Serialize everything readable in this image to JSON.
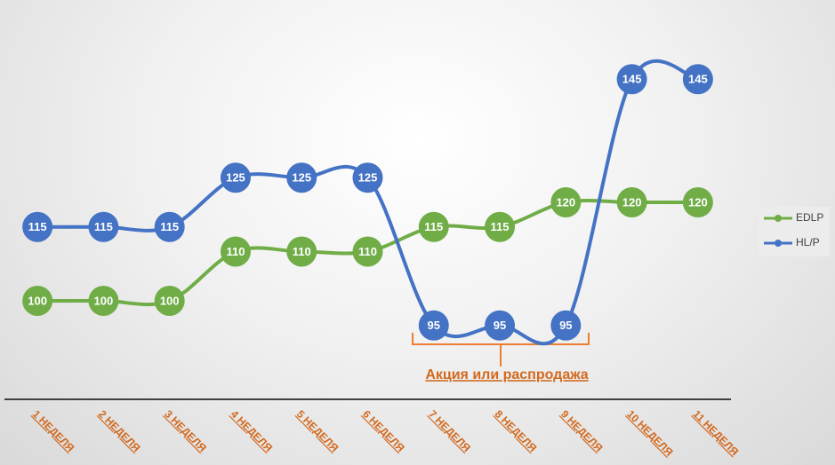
{
  "chart_data": {
    "type": "line",
    "smooth": true,
    "categories": [
      "1 НЕДЕЛЯ",
      "2 НЕДЕЛЯ",
      "3 НЕДЕЛЯ",
      "4 НЕДЕЛЯ",
      "5 НЕДЕЛЯ",
      "6 НЕДЕЛЯ",
      "7 НЕДЕЛЯ",
      "8 НЕДЕЛЯ",
      "9 НЕДЕЛЯ",
      "10 НЕДЕЛЯ",
      "11 НЕДЕЛЯ"
    ],
    "series": [
      {
        "name": "EDLP",
        "color": "#70ad47",
        "values": [
          100,
          100,
          100,
          110,
          110,
          110,
          115,
          115,
          120,
          120,
          120
        ]
      },
      {
        "name": "HL/P",
        "color": "#4472c4",
        "values": [
          115,
          115,
          115,
          125,
          125,
          125,
          95,
          95,
          95,
          145,
          145
        ]
      }
    ],
    "ylim": [
      80,
      150
    ],
    "legend": "right",
    "annotation": "Акция или распродажа"
  }
}
